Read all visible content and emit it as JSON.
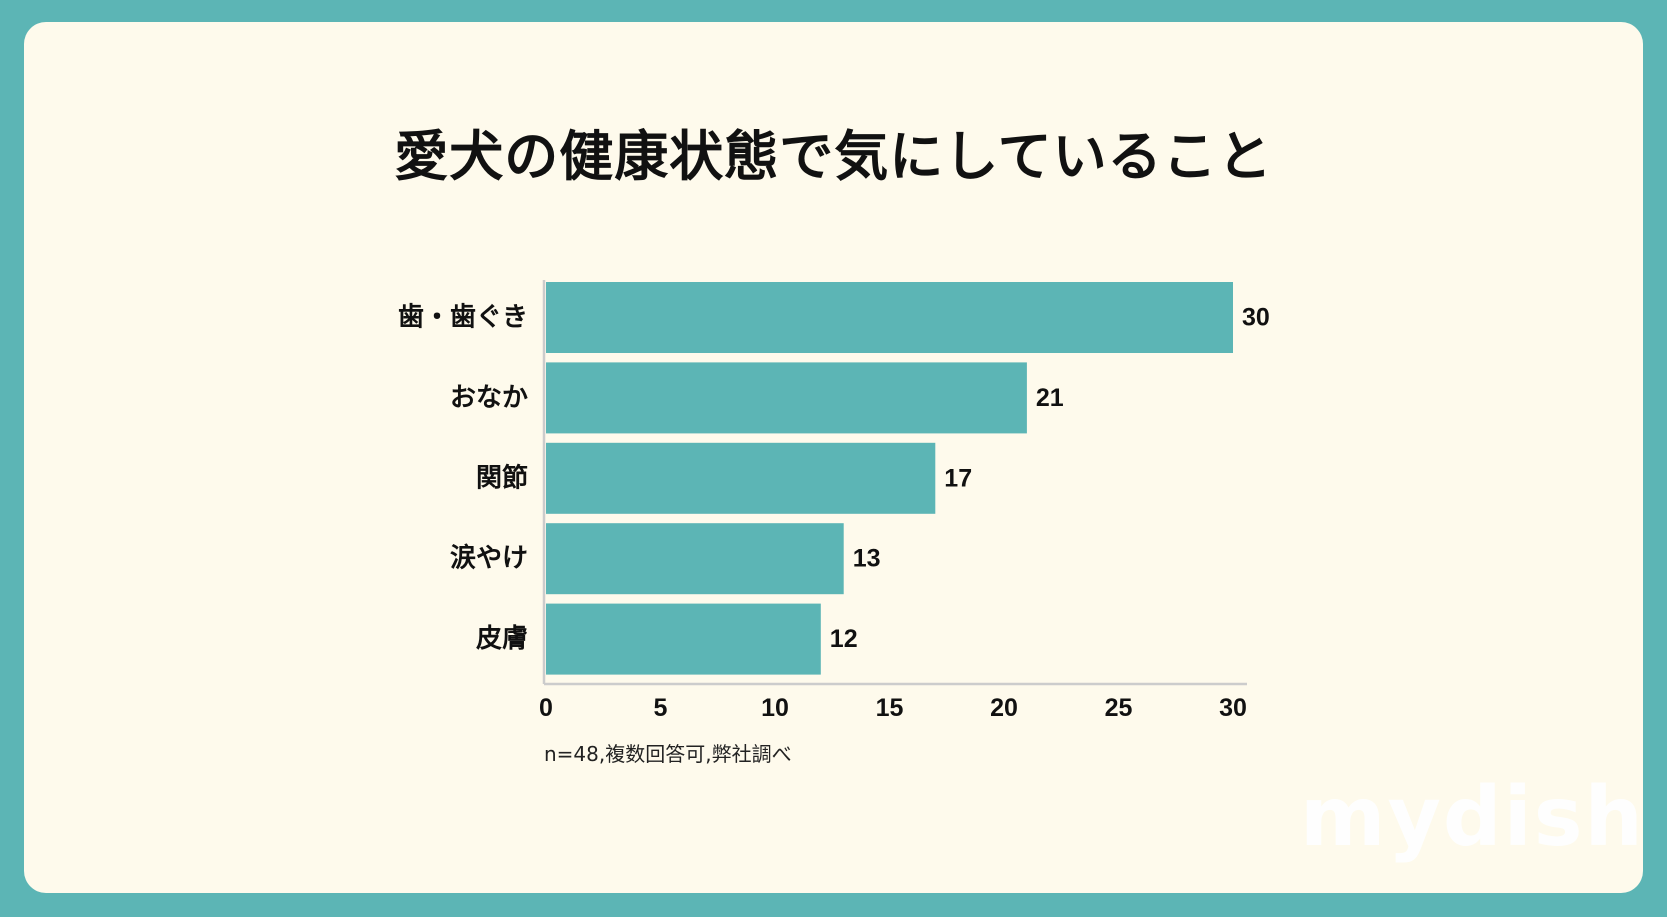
{
  "title": "愛犬の健康状態で気にしていること",
  "note": "n=48,複数回答可,弊社調べ",
  "logo": "mydish",
  "colors": {
    "background": "#5cb5b5",
    "card": "#fefaec",
    "bar": "#5cb5b5",
    "axis": "#cccccc"
  },
  "chart_data": {
    "type": "bar",
    "orientation": "horizontal",
    "categories": [
      "歯・歯ぐき",
      "おなか",
      "関節",
      "涙やけ",
      "皮膚"
    ],
    "values": [
      30,
      21,
      17,
      13,
      12
    ],
    "xlim": [
      0,
      30
    ],
    "xticks": [
      0,
      5,
      10,
      15,
      20,
      25,
      30
    ],
    "grid": false,
    "legend": "none"
  }
}
